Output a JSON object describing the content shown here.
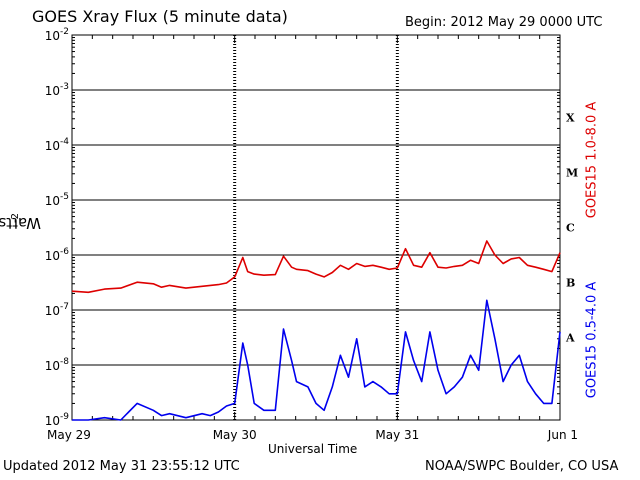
{
  "header": {
    "title": "GOES Xray Flux (5 minute data)",
    "begin": "Begin:  2012 May 29 0000 UTC"
  },
  "footer": {
    "updated": "Updated 2012 May 31 23:55:12 UTC",
    "credit": "NOAA/SWPC Boulder, CO USA"
  },
  "chart_data": {
    "type": "line",
    "xlabel": "Universal Time",
    "ylabel": "Watts m-2",
    "ylabel_base": "Watts m",
    "ylabel_sup": "-2",
    "yscale": "log",
    "ylim": [
      1e-09,
      0.01
    ],
    "y_ticks": [
      {
        "value": 1e-09,
        "mant": "10",
        "exp": "-9"
      },
      {
        "value": 1e-08,
        "mant": "10",
        "exp": "-8"
      },
      {
        "value": 1e-07,
        "mant": "10",
        "exp": "-7"
      },
      {
        "value": 1e-06,
        "mant": "10",
        "exp": "-6"
      },
      {
        "value": 1e-05,
        "mant": "10",
        "exp": "-5"
      },
      {
        "value": 0.0001,
        "mant": "10",
        "exp": "-4"
      },
      {
        "value": 0.001,
        "mant": "10",
        "exp": "-3"
      },
      {
        "value": 0.01,
        "mant": "10",
        "exp": "-2"
      }
    ],
    "x_ticks": [
      "May 29",
      "May 30",
      "May 31",
      "Jun 1"
    ],
    "flare_classes": [
      {
        "label": "A",
        "value": 1e-08
      },
      {
        "label": "B",
        "value": 1e-07
      },
      {
        "label": "C",
        "value": 1e-06
      },
      {
        "label": "M",
        "value": 1e-05
      },
      {
        "label": "X",
        "value": 0.0001
      }
    ],
    "grid": true,
    "colors": {
      "long": "#dd0000",
      "short": "#0000ee"
    },
    "series": [
      {
        "name": "GOES15 1.0-8.0 A",
        "color": "#dd0000",
        "x_days": [
          0,
          0.1,
          0.2,
          0.3,
          0.4,
          0.5,
          0.55,
          0.6,
          0.7,
          0.8,
          0.85,
          0.9,
          0.95,
          1.0,
          1.05,
          1.08,
          1.12,
          1.18,
          1.25,
          1.3,
          1.35,
          1.38,
          1.45,
          1.5,
          1.55,
          1.6,
          1.65,
          1.7,
          1.75,
          1.8,
          1.85,
          1.9,
          1.95,
          2.0,
          2.05,
          2.1,
          2.15,
          2.2,
          2.25,
          2.3,
          2.35,
          2.4,
          2.45,
          2.5,
          2.55,
          2.6,
          2.65,
          2.7,
          2.75,
          2.8,
          2.85,
          2.9,
          2.95,
          3.0
        ],
        "y": [
          2.2e-07,
          2.1e-07,
          2.4e-07,
          2.5e-07,
          3.2e-07,
          3e-07,
          2.6e-07,
          2.8e-07,
          2.5e-07,
          2.7e-07,
          2.8e-07,
          2.9e-07,
          3.1e-07,
          4e-07,
          9e-07,
          5e-07,
          4.5e-07,
          4.3e-07,
          4.4e-07,
          9.5e-07,
          6e-07,
          5.5e-07,
          5.2e-07,
          4.5e-07,
          4e-07,
          4.8e-07,
          6.5e-07,
          5.5e-07,
          7e-07,
          6.2e-07,
          6.5e-07,
          6e-07,
          5.5e-07,
          5.8e-07,
          1.3e-06,
          6.5e-07,
          6e-07,
          1.1e-06,
          6e-07,
          5.8e-07,
          6.2e-07,
          6.5e-07,
          8e-07,
          7e-07,
          1.8e-06,
          1e-06,
          7e-07,
          8.5e-07,
          9e-07,
          6.5e-07,
          6e-07,
          5.5e-07,
          5e-07,
          1.1e-06
        ]
      },
      {
        "name": "GOES15 0.5-4.0 A",
        "color": "#0000ee",
        "x_days": [
          0,
          0.1,
          0.2,
          0.3,
          0.4,
          0.5,
          0.55,
          0.6,
          0.7,
          0.8,
          0.85,
          0.9,
          0.95,
          1.0,
          1.05,
          1.08,
          1.12,
          1.18,
          1.25,
          1.3,
          1.35,
          1.38,
          1.45,
          1.5,
          1.55,
          1.6,
          1.65,
          1.7,
          1.75,
          1.8,
          1.85,
          1.9,
          1.95,
          2.0,
          2.05,
          2.1,
          2.15,
          2.2,
          2.25,
          2.3,
          2.35,
          2.4,
          2.45,
          2.5,
          2.55,
          2.6,
          2.65,
          2.7,
          2.75,
          2.8,
          2.85,
          2.9,
          2.95,
          3.0
        ],
        "y": [
          1e-09,
          1e-09,
          1.1e-09,
          1e-09,
          2e-09,
          1.5e-09,
          1.2e-09,
          1.3e-09,
          1.1e-09,
          1.3e-09,
          1.2e-09,
          1.4e-09,
          1.8e-09,
          2e-09,
          2.5e-08,
          1e-08,
          2e-09,
          1.5e-09,
          1.5e-09,
          4.5e-08,
          1.2e-08,
          5e-09,
          4e-09,
          2e-09,
          1.5e-09,
          4e-09,
          1.5e-08,
          6e-09,
          3e-08,
          4e-09,
          5e-09,
          4e-09,
          3e-09,
          3e-09,
          4e-08,
          1.2e-08,
          5e-09,
          4e-08,
          8e-09,
          3e-09,
          4e-09,
          6e-09,
          1.5e-08,
          8e-09,
          1.5e-07,
          3e-08,
          5e-09,
          1e-08,
          1.5e-08,
          5e-09,
          3e-09,
          2e-09,
          2e-09,
          4e-08
        ]
      }
    ]
  }
}
